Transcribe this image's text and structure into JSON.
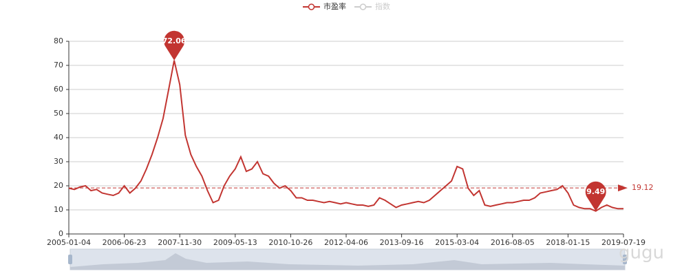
{
  "chart_data": {
    "type": "line",
    "categories": [
      "2005-01-04",
      null,
      null,
      null,
      null,
      null,
      null,
      null,
      null,
      null,
      "2006-06-23",
      null,
      null,
      null,
      null,
      null,
      null,
      null,
      null,
      null,
      "2007-11-30",
      null,
      null,
      null,
      null,
      null,
      null,
      null,
      null,
      null,
      "2009-05-13",
      null,
      null,
      null,
      null,
      null,
      null,
      null,
      null,
      null,
      "2010-10-26",
      null,
      null,
      null,
      null,
      null,
      null,
      null,
      null,
      null,
      "2012-04-06",
      null,
      null,
      null,
      null,
      null,
      null,
      null,
      null,
      null,
      "2013-09-16",
      null,
      null,
      null,
      null,
      null,
      null,
      null,
      null,
      null,
      "2015-03-04",
      null,
      null,
      null,
      null,
      null,
      null,
      null,
      null,
      null,
      "2016-08-05",
      null,
      null,
      null,
      null,
      null,
      null,
      null,
      null,
      null,
      "2018-01-15",
      null,
      null,
      null,
      null,
      null,
      null,
      null,
      null,
      null,
      "2019-07-19"
    ],
    "series": [
      {
        "name": "市盈率",
        "color": "#c23531",
        "values": [
          19,
          18.5,
          19.5,
          20,
          18,
          18.5,
          17,
          16.5,
          16,
          17,
          20,
          17,
          19,
          22,
          27,
          33,
          40,
          48,
          60,
          72.06,
          62,
          41,
          33,
          28,
          24,
          18,
          13,
          14,
          20,
          24,
          27,
          32,
          26,
          27,
          30,
          25,
          24,
          21,
          19,
          20,
          18,
          15,
          15,
          14,
          14,
          13.5,
          13,
          13.5,
          13,
          12.5,
          13,
          12.5,
          12,
          12,
          11.5,
          12,
          15,
          14,
          12.5,
          11,
          12,
          12.5,
          13,
          13.5,
          13,
          14,
          16,
          18,
          20,
          22,
          28,
          27,
          19,
          16,
          18,
          12,
          11.5,
          12,
          12.5,
          13,
          13,
          13.5,
          14,
          14,
          15,
          17,
          17.5,
          18,
          18.5,
          20,
          17,
          12,
          11,
          10.5,
          10.5,
          9.49,
          11,
          12,
          11,
          10.5,
          10.5
        ]
      },
      {
        "name": "指数",
        "color": "#cccccc",
        "hidden": true
      }
    ],
    "mark_points": [
      {
        "type": "max",
        "value": 72.06
      },
      {
        "type": "min",
        "value": 9.49
      }
    ],
    "mark_line": {
      "type": "average",
      "value": 19.12
    },
    "ylim": [
      0,
      80
    ],
    "yticks": [
      0,
      10,
      20,
      30,
      40,
      50,
      60,
      70,
      80
    ],
    "grid": true,
    "watermark": "gugu"
  }
}
